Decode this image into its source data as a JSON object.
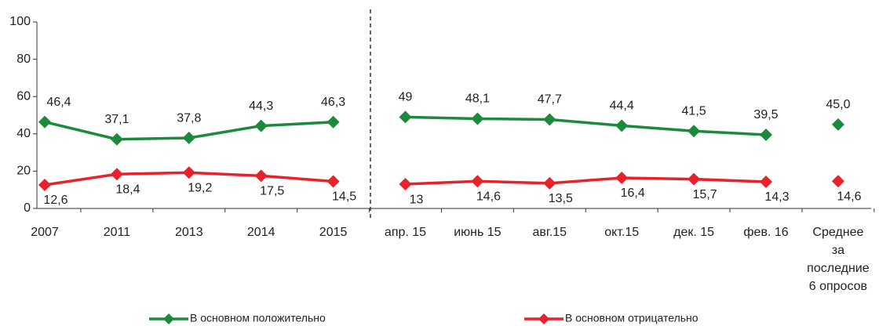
{
  "chart_data": {
    "type": "line",
    "categories": [
      "2007",
      "2011",
      "2013",
      "2014",
      "2015",
      null,
      "апр. 15",
      "июнь 15",
      "авг.15",
      "окт.15",
      "дек. 15",
      "фев. 16",
      null,
      "Среднее\nза\nпоследние\n6 опросов"
    ],
    "series": [
      {
        "name": "В основном положительно",
        "color": "#1b8a3b",
        "values": [
          46.4,
          37.1,
          37.8,
          44.3,
          46.3,
          null,
          49,
          48.1,
          47.7,
          44.4,
          41.5,
          39.5,
          null,
          45.0
        ],
        "value_labels": [
          "46,4",
          "37,1",
          "37,8",
          "44,3",
          "46,3",
          null,
          "49",
          "48,1",
          "47,7",
          "44,4",
          "41,5",
          "39,5",
          null,
          "45,0"
        ]
      },
      {
        "name": "В основном отрицательно",
        "color": "#e8212b",
        "values": [
          12.6,
          18.4,
          19.2,
          17.5,
          14.5,
          null,
          13,
          14.6,
          13.5,
          16.4,
          15.7,
          14.3,
          null,
          14.6
        ],
        "value_labels": [
          "12,6",
          "18,4",
          "19,2",
          "17,5",
          "14,5",
          null,
          "13",
          "14,6",
          "13,5",
          "16,4",
          "15,7",
          "14,3",
          null,
          "14,6"
        ]
      }
    ],
    "ylim": [
      0,
      100
    ],
    "yticks": [
      0,
      20,
      40,
      60,
      80,
      100
    ],
    "legend": "bottom"
  }
}
